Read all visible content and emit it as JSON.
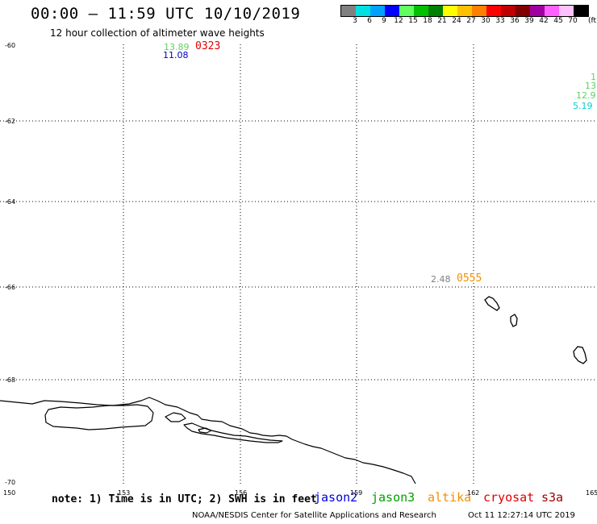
{
  "header": {
    "title": "00:00 – 11:59 UTC 10/10/2019",
    "subtitle": "12 hour collection of altimeter wave heights"
  },
  "legend": {
    "colors": [
      "#808080",
      "#00e0e0",
      "#00a0ff",
      "#0000ff",
      "#60ff60",
      "#00c000",
      "#008000",
      "#ffff00",
      "#ffc000",
      "#ff8000",
      "#ff0000",
      "#c00000",
      "#800000",
      "#a000a0",
      "#ff60ff",
      "#ffc0ff",
      "#000000"
    ],
    "labels": [
      "3",
      "6",
      "9",
      "12",
      "15",
      "18",
      "21",
      "24",
      "27",
      "30",
      "33",
      "36",
      "39",
      "42",
      "45",
      "70"
    ],
    "unit": "(ft)"
  },
  "axes": {
    "lat_labels": [
      "-60",
      "-62",
      "-64",
      "-66",
      "-68",
      "-70"
    ],
    "lon_labels": [
      "150",
      "153",
      "156",
      "159",
      "162",
      "165"
    ]
  },
  "observations": [
    {
      "text": "13.89",
      "color": "#60d060"
    },
    {
      "text": "11.08",
      "color": "#0000c0"
    },
    {
      "text": "0323",
      "color": "#e00000"
    },
    {
      "text": "1.",
      "color": "#60d060"
    },
    {
      "text": "13.",
      "color": "#60d060"
    },
    {
      "text": "12.9",
      "color": "#60d060"
    },
    {
      "text": "5.19",
      "color": "#00d0d0"
    },
    {
      "text": "2.48",
      "color": "#808080"
    },
    {
      "text": "0555",
      "color": "#f09000"
    }
  ],
  "footer": {
    "note": "note: 1) Time is in UTC; 2) SWH is in feet",
    "satellites": [
      {
        "name": "jason2",
        "color": "#0000e0"
      },
      {
        "name": "jason3",
        "color": "#00a000"
      },
      {
        "name": "altika",
        "color": "#f09000"
      },
      {
        "name": "cryosat",
        "color": "#e00000"
      },
      {
        "name": "s3a",
        "color": "#a00000"
      }
    ],
    "credit": "NOAA/NESDIS Center for Satellite Applications and Research",
    "generated": "Oct 11 12:27:14 UTC 2019"
  }
}
